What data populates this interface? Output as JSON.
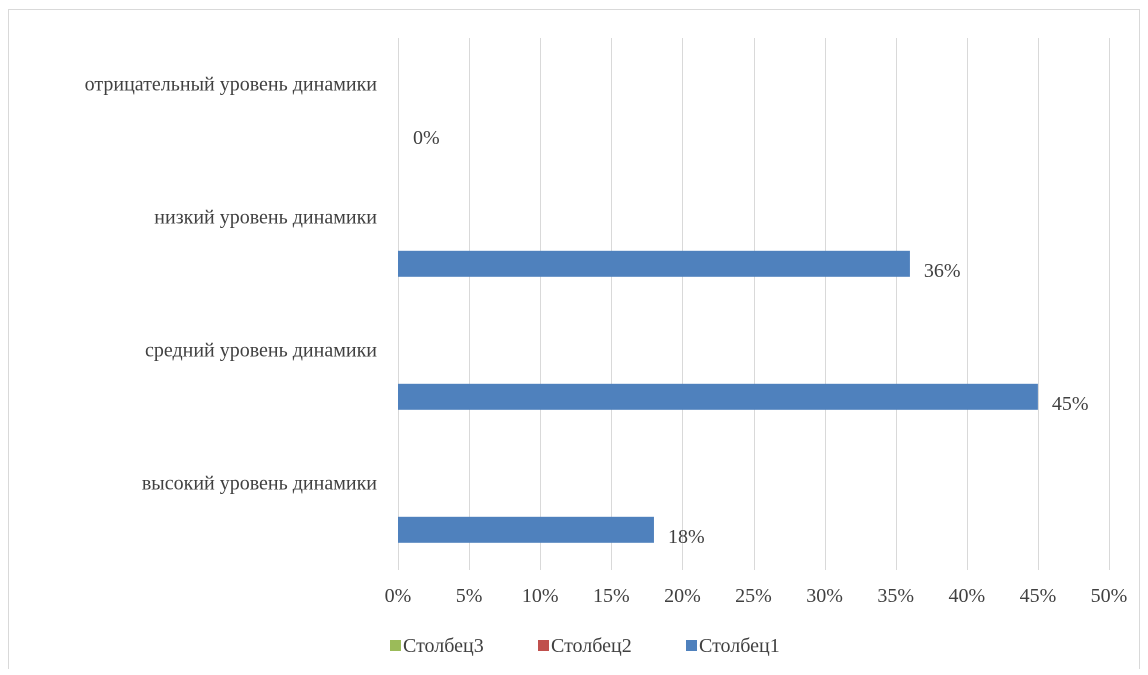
{
  "chart_data": {
    "type": "bar",
    "orientation": "horizontal",
    "title": "",
    "xlabel": "",
    "ylabel": "",
    "categories": [
      "высокий уровень динамики",
      "средний уровень динамики",
      "низкий уровень динамики",
      "отрицательный уровень динамики"
    ],
    "series": [
      {
        "name": "Столбец1",
        "color": "#4f81bd",
        "values": [
          18,
          45,
          36,
          0
        ]
      },
      {
        "name": "Столбец2",
        "color": "#c0504d",
        "values": [
          null,
          null,
          null,
          null
        ]
      },
      {
        "name": "Столбец3",
        "color": "#9bbb59",
        "values": [
          null,
          null,
          null,
          null
        ]
      }
    ],
    "data_labels": [
      "18%",
      "45%",
      "36%",
      "0%"
    ],
    "xlim": [
      0,
      50
    ],
    "x_ticks": [
      0,
      5,
      10,
      15,
      20,
      25,
      30,
      35,
      40,
      45,
      50
    ],
    "x_tick_labels": [
      "0%",
      "5%",
      "10%",
      "15%",
      "20%",
      "25%",
      "30%",
      "35%",
      "40%",
      "45%",
      "50%"
    ],
    "grid": "vertical",
    "legend_position": "bottom",
    "legend": [
      "Столбец3",
      "Столбец2",
      "Столбец1"
    ]
  }
}
